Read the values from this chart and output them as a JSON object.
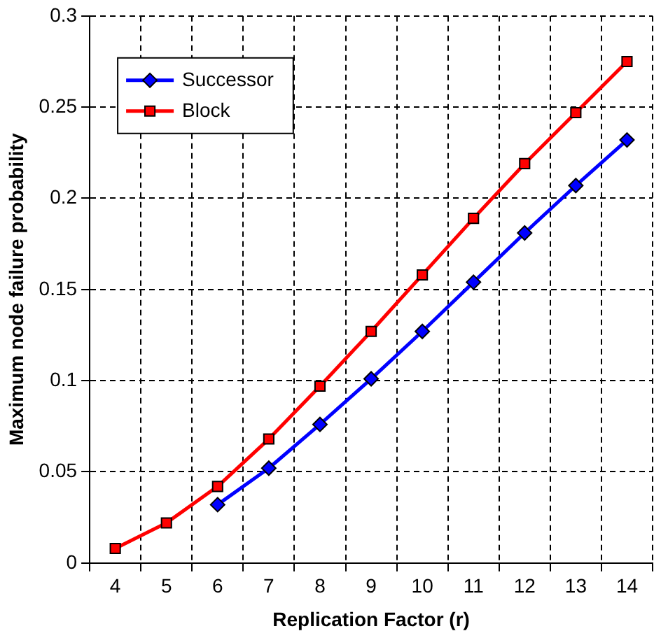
{
  "chart_data": {
    "type": "line",
    "xlabel": "Replication Factor (r)",
    "ylabel": "Maximum node failure probability",
    "categories": [
      "4",
      "5",
      "6",
      "7",
      "8",
      "9",
      "10",
      "11",
      "12",
      "13",
      "14"
    ],
    "series": [
      {
        "name": "Successor",
        "color": "#0000ff",
        "marker": "diamond",
        "values": [
          null,
          null,
          0.032,
          0.052,
          0.076,
          0.101,
          0.127,
          0.154,
          0.181,
          0.207,
          0.232
        ]
      },
      {
        "name": "Block",
        "color": "#ff0000",
        "marker": "square",
        "values": [
          0.008,
          0.022,
          0.042,
          0.068,
          0.097,
          0.127,
          0.158,
          0.189,
          0.219,
          0.247,
          0.275
        ]
      }
    ],
    "ylim": [
      0,
      0.3
    ],
    "yticks": [
      0,
      0.05,
      0.1,
      0.15,
      0.2,
      0.25,
      0.3
    ],
    "grid": true,
    "legend": "top left",
    "line_style": "solid"
  }
}
